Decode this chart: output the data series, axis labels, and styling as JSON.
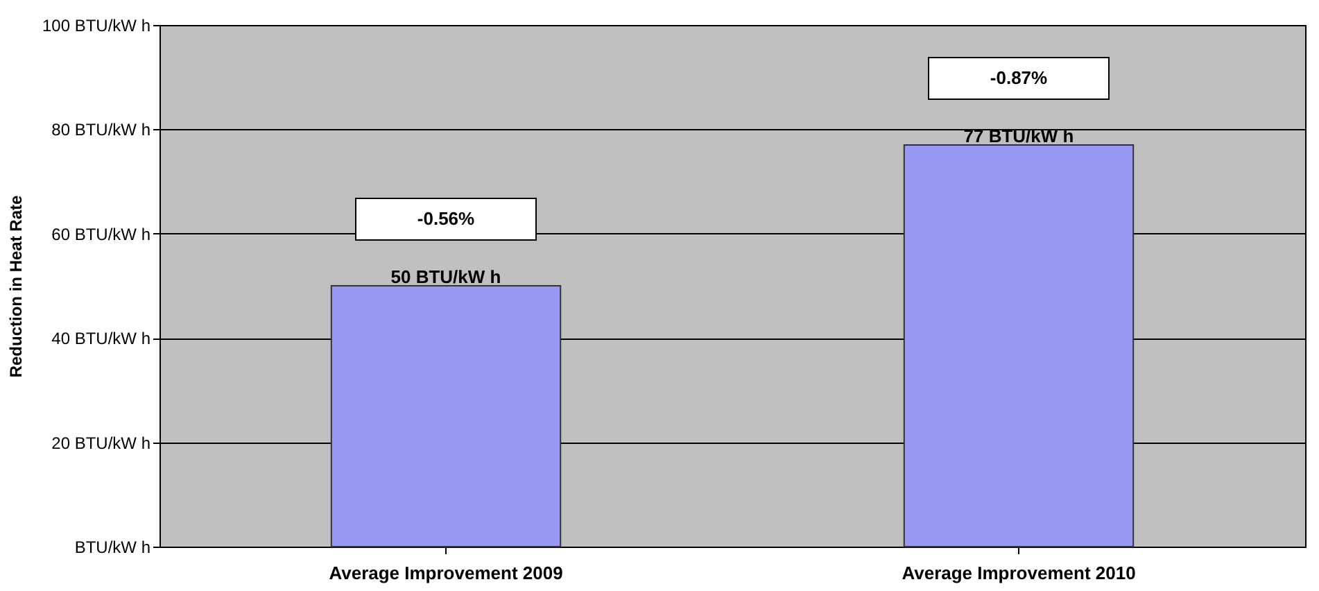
{
  "chart_data": {
    "type": "bar",
    "ylabel": "Reduction in Heat Rate",
    "categories": [
      "Average Improvement 2009",
      "Average Improvement 2010"
    ],
    "values": [
      50,
      77
    ],
    "color": "#9999f5",
    "value_labels": [
      "50 BTU/kW h",
      "77 BTU/kW h"
    ],
    "ylim": [
      0,
      100
    ],
    "yticks": [
      {
        "value": 0,
        "label": "BTU/kW h"
      },
      {
        "value": 20,
        "label": "20 BTU/kW h"
      },
      {
        "value": 40,
        "label": "40 BTU/kW h"
      },
      {
        "value": 60,
        "label": "60 BTU/kW h"
      },
      {
        "value": 80,
        "label": "80 BTU/kW h"
      },
      {
        "value": 100,
        "label": "100 BTU/kW h"
      }
    ],
    "grid": "y",
    "annotations": [
      "-0.56%",
      "-0.87%"
    ]
  }
}
